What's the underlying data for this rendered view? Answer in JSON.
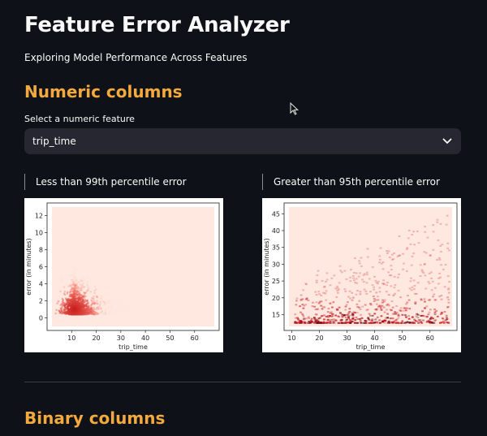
{
  "page": {
    "title": "Feature Error Analyzer",
    "subtitle": "Exploring Model Performance Across Features"
  },
  "numeric_section": {
    "heading": "Numeric columns",
    "select_label": "Select a numeric feature",
    "selected_value": "trip_time",
    "dropdown_icon": "chevron-down-icon"
  },
  "binary_section": {
    "heading": "Binary columns"
  },
  "colors": {
    "background": "#0e1117",
    "accent": "#f4a93d",
    "select_bg": "#262730",
    "heat_dark": "#b2182b",
    "heat_light": "#fee8e0"
  },
  "chart_data": [
    {
      "type": "heatmap",
      "caption": "Less than 99th percentile error",
      "xlabel": "trip_time",
      "ylabel": "error (in minutes)",
      "xlim": [
        2,
        68
      ],
      "ylim": [
        -1,
        13
      ],
      "xticks": [
        10,
        20,
        30,
        40,
        50,
        60
      ],
      "yticks": [
        0,
        2,
        4,
        6,
        8,
        10,
        12
      ],
      "density_peak": {
        "x": 11,
        "y": 1
      },
      "grid": false
    },
    {
      "type": "heatmap",
      "caption": "Greater than 95th percentile error",
      "xlabel": "trip_time",
      "ylabel": "error (in minutes)",
      "xlim": [
        9,
        68
      ],
      "ylim": [
        11.5,
        47
      ],
      "xticks": [
        10,
        20,
        30,
        40,
        50,
        60
      ],
      "yticks": [
        15,
        20,
        25,
        30,
        35,
        40,
        45
      ],
      "density_peak": {
        "x": 45,
        "y": 14
      },
      "grid": false
    }
  ]
}
